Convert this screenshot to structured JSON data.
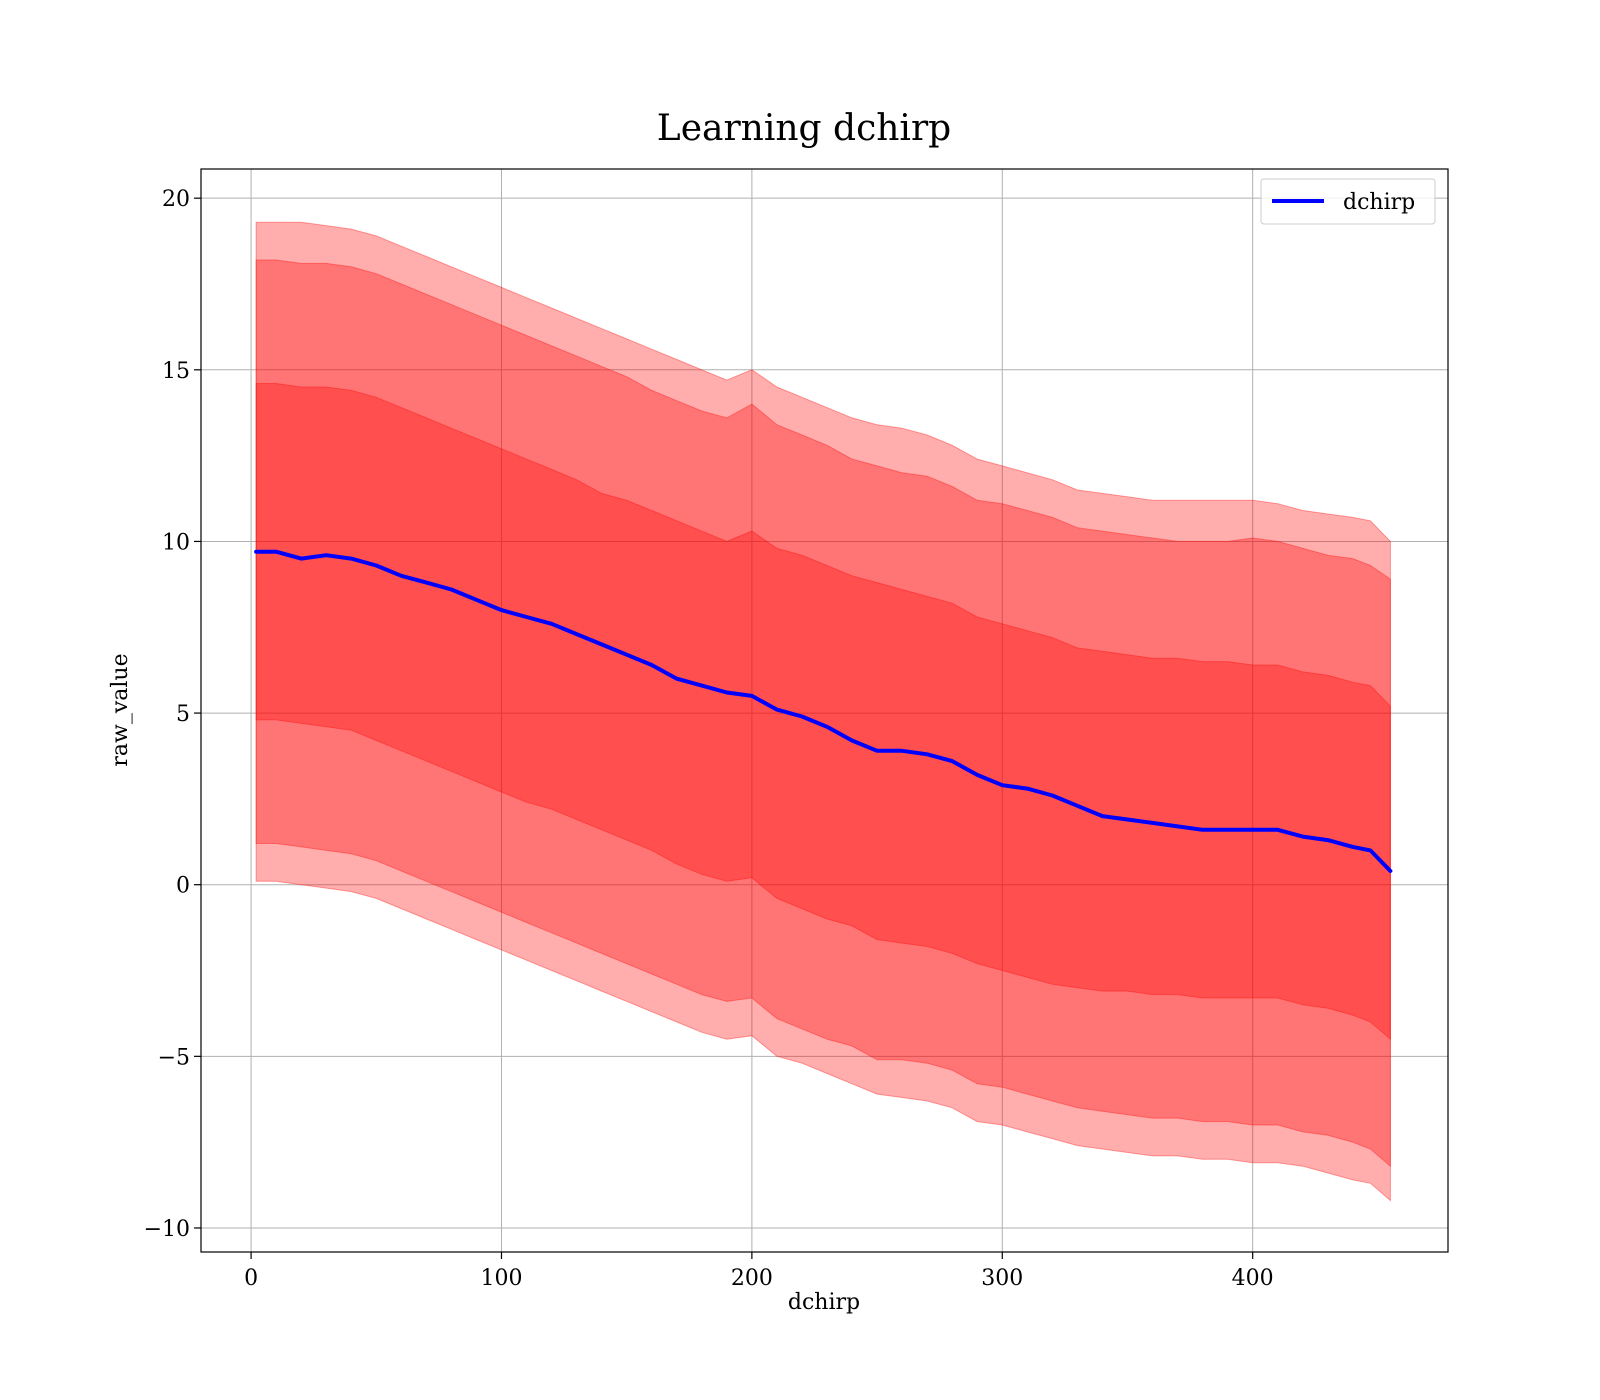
{
  "chart_data": {
    "type": "line",
    "title": "Learning dchirp",
    "xlabel": "dchirp",
    "ylabel": "raw_value",
    "xlim": [
      -20,
      478
    ],
    "ylim": [
      -10.7,
      20.85
    ],
    "x_ticks": [
      0,
      100,
      200,
      300,
      400
    ],
    "y_ticks": [
      -10,
      -5,
      0,
      5,
      10,
      15,
      20
    ],
    "x_tick_labels": [
      "0",
      "100",
      "200",
      "300",
      "400"
    ],
    "y_tick_labels": [
      "−10",
      "−5",
      "0",
      "5",
      "10",
      "15",
      "20"
    ],
    "grid": true,
    "legend": {
      "position": "top-right",
      "entries": [
        "dchirp"
      ]
    },
    "colors": {
      "line": "#0000ff",
      "band": "#ff0000",
      "band_opacity": 0.32,
      "grid": "#b0b0b0"
    },
    "x": [
      2,
      10,
      20,
      30,
      40,
      50,
      60,
      70,
      80,
      90,
      100,
      110,
      120,
      130,
      140,
      150,
      160,
      170,
      180,
      190,
      200,
      210,
      220,
      230,
      240,
      250,
      260,
      270,
      280,
      290,
      300,
      310,
      320,
      330,
      340,
      350,
      360,
      370,
      380,
      390,
      400,
      410,
      420,
      430,
      440,
      447,
      455
    ],
    "series": [
      {
        "name": "dchirp",
        "values": [
          9.7,
          9.7,
          9.5,
          9.6,
          9.5,
          9.3,
          9.0,
          8.8,
          8.6,
          8.3,
          8.0,
          7.8,
          7.6,
          7.3,
          7.0,
          6.7,
          6.4,
          6.0,
          5.8,
          5.6,
          5.5,
          5.1,
          4.9,
          4.6,
          4.2,
          3.9,
          3.9,
          3.8,
          3.6,
          3.2,
          2.9,
          2.8,
          2.6,
          2.3,
          2.0,
          1.9,
          1.8,
          1.7,
          1.6,
          1.6,
          1.6,
          1.6,
          1.4,
          1.3,
          1.1,
          1.0,
          0.4
        ]
      }
    ],
    "bands": [
      {
        "lower": [
          4.8,
          4.8,
          4.7,
          4.6,
          4.5,
          4.2,
          3.9,
          3.6,
          3.3,
          3.0,
          2.7,
          2.4,
          2.2,
          1.9,
          1.6,
          1.3,
          1.0,
          0.6,
          0.3,
          0.1,
          0.2,
          -0.4,
          -0.7,
          -1.0,
          -1.2,
          -1.6,
          -1.7,
          -1.8,
          -2.0,
          -2.3,
          -2.5,
          -2.7,
          -2.9,
          -3.0,
          -3.1,
          -3.1,
          -3.2,
          -3.2,
          -3.3,
          -3.3,
          -3.3,
          -3.3,
          -3.5,
          -3.6,
          -3.8,
          -4.0,
          -4.5
        ],
        "upper": [
          14.6,
          14.6,
          14.5,
          14.5,
          14.4,
          14.2,
          13.9,
          13.6,
          13.3,
          13.0,
          12.7,
          12.4,
          12.1,
          11.8,
          11.4,
          11.2,
          10.9,
          10.6,
          10.3,
          10.0,
          10.3,
          9.8,
          9.6,
          9.3,
          9.0,
          8.8,
          8.6,
          8.4,
          8.2,
          7.8,
          7.6,
          7.4,
          7.2,
          6.9,
          6.8,
          6.7,
          6.6,
          6.6,
          6.5,
          6.5,
          6.4,
          6.4,
          6.2,
          6.1,
          5.9,
          5.8,
          5.2
        ]
      },
      {
        "lower": [
          1.2,
          1.2,
          1.1,
          1.0,
          0.9,
          0.7,
          0.4,
          0.1,
          -0.2,
          -0.5,
          -0.8,
          -1.1,
          -1.4,
          -1.7,
          -2.0,
          -2.3,
          -2.6,
          -2.9,
          -3.2,
          -3.4,
          -3.3,
          -3.9,
          -4.2,
          -4.5,
          -4.7,
          -5.1,
          -5.1,
          -5.2,
          -5.4,
          -5.8,
          -5.9,
          -6.1,
          -6.3,
          -6.5,
          -6.6,
          -6.7,
          -6.8,
          -6.8,
          -6.9,
          -6.9,
          -7.0,
          -7.0,
          -7.2,
          -7.3,
          -7.5,
          -7.7,
          -8.2
        ],
        "upper": [
          18.2,
          18.2,
          18.1,
          18.1,
          18.0,
          17.8,
          17.5,
          17.2,
          16.9,
          16.6,
          16.3,
          16.0,
          15.7,
          15.4,
          15.1,
          14.8,
          14.4,
          14.1,
          13.8,
          13.6,
          14.0,
          13.4,
          13.1,
          12.8,
          12.4,
          12.2,
          12.0,
          11.9,
          11.6,
          11.2,
          11.1,
          10.9,
          10.7,
          10.4,
          10.3,
          10.2,
          10.1,
          10.0,
          10.0,
          10.0,
          10.1,
          10.0,
          9.8,
          9.6,
          9.5,
          9.3,
          8.9
        ]
      },
      {
        "lower": [
          0.1,
          0.1,
          0.0,
          -0.1,
          -0.2,
          -0.4,
          -0.7,
          -1.0,
          -1.3,
          -1.6,
          -1.9,
          -2.2,
          -2.5,
          -2.8,
          -3.1,
          -3.4,
          -3.7,
          -4.0,
          -4.3,
          -4.5,
          -4.4,
          -5.0,
          -5.2,
          -5.5,
          -5.8,
          -6.1,
          -6.2,
          -6.3,
          -6.5,
          -6.9,
          -7.0,
          -7.2,
          -7.4,
          -7.6,
          -7.7,
          -7.8,
          -7.9,
          -7.9,
          -8.0,
          -8.0,
          -8.1,
          -8.1,
          -8.2,
          -8.4,
          -8.6,
          -8.7,
          -9.2
        ],
        "upper": [
          19.3,
          19.3,
          19.3,
          19.2,
          19.1,
          18.9,
          18.6,
          18.3,
          18.0,
          17.7,
          17.4,
          17.1,
          16.8,
          16.5,
          16.2,
          15.9,
          15.6,
          15.3,
          15.0,
          14.7,
          15.0,
          14.5,
          14.2,
          13.9,
          13.6,
          13.4,
          13.3,
          13.1,
          12.8,
          12.4,
          12.2,
          12.0,
          11.8,
          11.5,
          11.4,
          11.3,
          11.2,
          11.2,
          11.2,
          11.2,
          11.2,
          11.1,
          10.9,
          10.8,
          10.7,
          10.6,
          10.0
        ]
      }
    ]
  }
}
